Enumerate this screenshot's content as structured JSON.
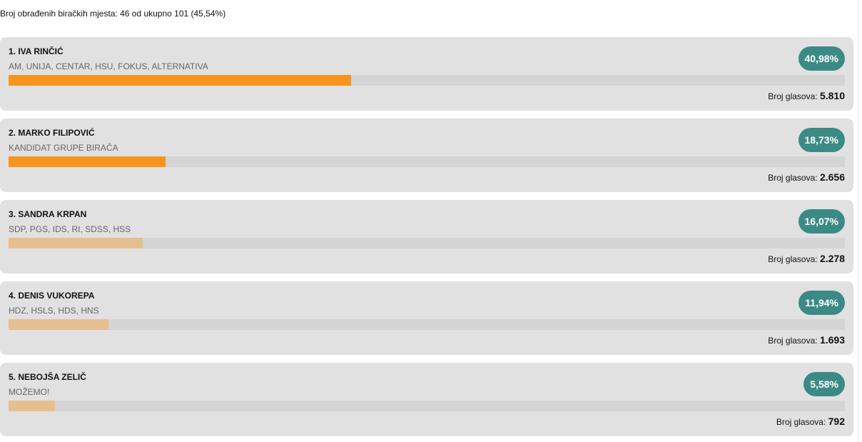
{
  "summary": "Broj obrađenih biračkih mjesta: 46 od ukupno 101 (45,54%)",
  "votes_label": "Broj glasova:",
  "colors": {
    "badge": "#3b8a86",
    "bar_top": "#f7941d",
    "bar_other": "#e6bf91",
    "track": "#d4d4d4"
  },
  "candidates": [
    {
      "name": "1. IVA RINČIĆ",
      "parties": "AM, UNIJA, CENTAR, HSU, FOKUS, ALTERNATIVA",
      "percent_label": "40,98%",
      "percent": 40.98,
      "votes": "5.810",
      "highlight": true
    },
    {
      "name": "2. MARKO FILIPOVIĆ",
      "parties": "KANDIDAT GRUPE BIRAČA",
      "percent_label": "18,73%",
      "percent": 18.73,
      "votes": "2.656",
      "highlight": true
    },
    {
      "name": "3. SANDRA KRPAN",
      "parties": "SDP, PGS, IDS, RI, SDSS, HSS",
      "percent_label": "16,07%",
      "percent": 16.07,
      "votes": "2.278",
      "highlight": false
    },
    {
      "name": "4. DENIS VUKOREPA",
      "parties": "HDZ, HSLS, HDS, HNS",
      "percent_label": "11,94%",
      "percent": 11.94,
      "votes": "1.693",
      "highlight": false
    },
    {
      "name": "5. NEBOJŠA ZELIČ",
      "parties": "MOŽEMO!",
      "percent_label": "5,58%",
      "percent": 5.58,
      "votes": "792",
      "highlight": false
    }
  ]
}
